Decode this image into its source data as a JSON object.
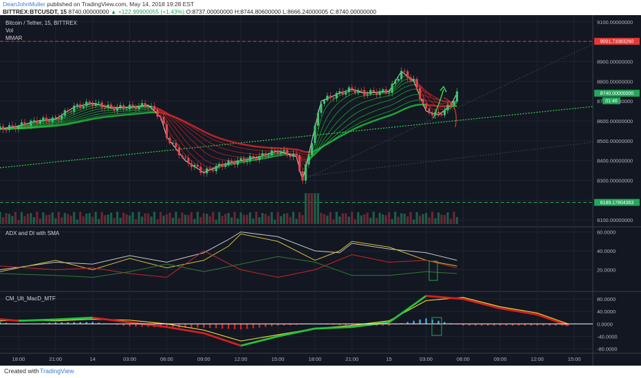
{
  "header": {
    "author": "DeanJohnMuller",
    "published": "published on TradingView.com, May 14, 2018 19:28 EST",
    "symbol": "BITTREX:BTCUSDT, 15",
    "last": "8740.00000000",
    "change": "+122.99900055 (+1.43%)",
    "o_label": "O:",
    "o": "8737.00000000",
    "h_label": "H:",
    "h": "8744.80600000",
    "l_label": "L:",
    "l": "8666.24000005",
    "c_label": "C:",
    "c": "8740.00000000"
  },
  "main_pane": {
    "title": "Bitcoin / Tether, 15, BITTREX",
    "indicator1": "Vol",
    "indicator2": "MMAR"
  },
  "adx_pane": {
    "title": "ADX and DI with SMA"
  },
  "macd_pane": {
    "title": "CM_Ult_MacD_MTF"
  },
  "price_labels": {
    "red_level": "9001.73383260",
    "last_price": "8740.00000000",
    "countdown": "01:46",
    "green_level": "8189.17804363"
  },
  "colors": {
    "background": "#131722",
    "up": "#26a65b",
    "down": "#e53935",
    "red_level": "#e53935",
    "green_level": "#26a65b"
  },
  "chart_data": [
    {
      "type": "line",
      "title": "Bitcoin / Tether, 15, BITTREX",
      "ylim": [
        8080,
        9120
      ],
      "y_ticks": [
        "9100.00000000",
        "9000.00000000",
        "8900.00000000",
        "8800.00000000",
        "8700.00000000",
        "8600.00000000",
        "8500.00000000",
        "8400.00000000",
        "8300.00000000",
        "8200.00000000",
        "8100.00000000"
      ],
      "x_ticks": [
        "18:00",
        "21:00",
        "14",
        "03:00",
        "06:00",
        "09:00",
        "12:00",
        "15:00",
        "18:00",
        "21:00",
        "15",
        "03:00",
        "06:00",
        "09:00",
        "12:00",
        "15:00"
      ],
      "x_tick_hours": [
        0,
        3,
        6,
        9,
        12,
        15,
        18,
        21,
        24,
        27,
        30,
        33,
        36,
        39,
        42,
        45
      ],
      "x_range_hours": [
        -1.5,
        46.5
      ],
      "series": [
        {
          "values": [
            [
              -1.5,
              8560
            ],
            [
              0,
              8575
            ],
            [
              1.5,
              8600
            ],
            [
              3,
              8610
            ],
            [
              4.5,
              8670
            ],
            [
              6,
              8690
            ],
            [
              7.5,
              8665
            ],
            [
              9,
              8670
            ],
            [
              10.5,
              8680
            ],
            [
              11.5,
              8620
            ],
            [
              12,
              8520
            ],
            [
              13.5,
              8400
            ],
            [
              15,
              8340
            ],
            [
              16.5,
              8380
            ],
            [
              18,
              8400
            ],
            [
              19.5,
              8420
            ],
            [
              21,
              8450
            ],
            [
              22.5,
              8420
            ],
            [
              23,
              8300
            ],
            [
              24.5,
              8700
            ],
            [
              26,
              8740
            ],
            [
              27,
              8760
            ],
            [
              28,
              8740
            ],
            [
              30,
              8750
            ],
            [
              31,
              8850
            ],
            [
              32,
              8800
            ],
            [
              33,
              8650
            ],
            [
              34,
              8630
            ],
            [
              35,
              8680
            ],
            [
              35.5,
              8740
            ]
          ]
        }
      ],
      "levels": [
        9001.7338326,
        8189.17804363
      ]
    },
    {
      "type": "line",
      "title": "ADX and DI with SMA",
      "ylim": [
        0,
        64
      ],
      "y_ticks": [
        "60.0000",
        "40.0000",
        "20.0000"
      ],
      "series": [
        {
          "values": [
            [
              -1.5,
              20
            ],
            [
              3,
              28
            ],
            [
              6,
              26
            ],
            [
              9,
              35
            ],
            [
              12,
              28
            ],
            [
              15,
              38
            ],
            [
              17,
              52
            ],
            [
              18,
              60
            ],
            [
              21,
              55
            ],
            [
              24,
              40
            ],
            [
              26,
              38
            ],
            [
              27,
              48
            ],
            [
              30,
              42
            ],
            [
              33,
              38
            ],
            [
              35.5,
              30
            ]
          ]
        },
        {
          "values": [
            [
              -1.5,
              18
            ],
            [
              3,
              30
            ],
            [
              6,
              20
            ],
            [
              9,
              32
            ],
            [
              12,
              22
            ],
            [
              15,
              30
            ],
            [
              17,
              45
            ],
            [
              18,
              58
            ],
            [
              21,
              50
            ],
            [
              24,
              30
            ],
            [
              26,
              40
            ],
            [
              27,
              50
            ],
            [
              30,
              44
            ],
            [
              33,
              30
            ],
            [
              35.5,
              24
            ]
          ]
        },
        {
          "values": [
            [
              -1.5,
              24
            ],
            [
              3,
              20
            ],
            [
              6,
              22
            ],
            [
              9,
              16
            ],
            [
              12,
              12
            ],
            [
              15,
              40
            ],
            [
              18,
              20
            ],
            [
              21,
              12
            ],
            [
              24,
              20
            ],
            [
              27,
              36
            ],
            [
              30,
              28
            ],
            [
              33,
              30
            ],
            [
              35.5,
              22
            ]
          ]
        },
        {
          "values": [
            [
              -1.5,
              16
            ],
            [
              3,
              14
            ],
            [
              6,
              12
            ],
            [
              9,
              18
            ],
            [
              12,
              26
            ],
            [
              15,
              18
            ],
            [
              18,
              26
            ],
            [
              21,
              34
            ],
            [
              24,
              28
            ],
            [
              27,
              14
            ],
            [
              30,
              14
            ],
            [
              33,
              18
            ],
            [
              35.5,
              16
            ]
          ]
        }
      ]
    },
    {
      "type": "line",
      "title": "CM_Ult_MacD_MTF",
      "ylim": [
        -90,
        100
      ],
      "y_ticks": [
        "80.0000",
        "40.0000",
        "0.0000",
        "-40.0000",
        "-80.0000"
      ],
      "series": [
        {
          "values": [
            [
              -1.5,
              15
            ],
            [
              0,
              10
            ],
            [
              3,
              14
            ],
            [
              6,
              20
            ],
            [
              9,
              5
            ],
            [
              12,
              -10
            ],
            [
              15,
              -30
            ],
            [
              18,
              -70
            ],
            [
              21,
              -40
            ],
            [
              24,
              -15
            ],
            [
              27,
              -10
            ],
            [
              30,
              5
            ],
            [
              33,
              90
            ],
            [
              36,
              80
            ],
            [
              39,
              50
            ],
            [
              42,
              30
            ],
            [
              44.5,
              -5
            ]
          ]
        },
        {
          "values": [
            [
              -1.5,
              10
            ],
            [
              0,
              12
            ],
            [
              3,
              10
            ],
            [
              6,
              15
            ],
            [
              9,
              12
            ],
            [
              12,
              0
            ],
            [
              15,
              -20
            ],
            [
              18,
              -55
            ],
            [
              21,
              -35
            ],
            [
              24,
              -15
            ],
            [
              27,
              -5
            ],
            [
              30,
              10
            ],
            [
              33,
              75
            ],
            [
              36,
              85
            ],
            [
              39,
              55
            ],
            [
              42,
              35
            ],
            [
              44.5,
              0
            ]
          ]
        }
      ]
    }
  ],
  "footer": {
    "created_with": "Created with",
    "brand": "TradingView"
  }
}
